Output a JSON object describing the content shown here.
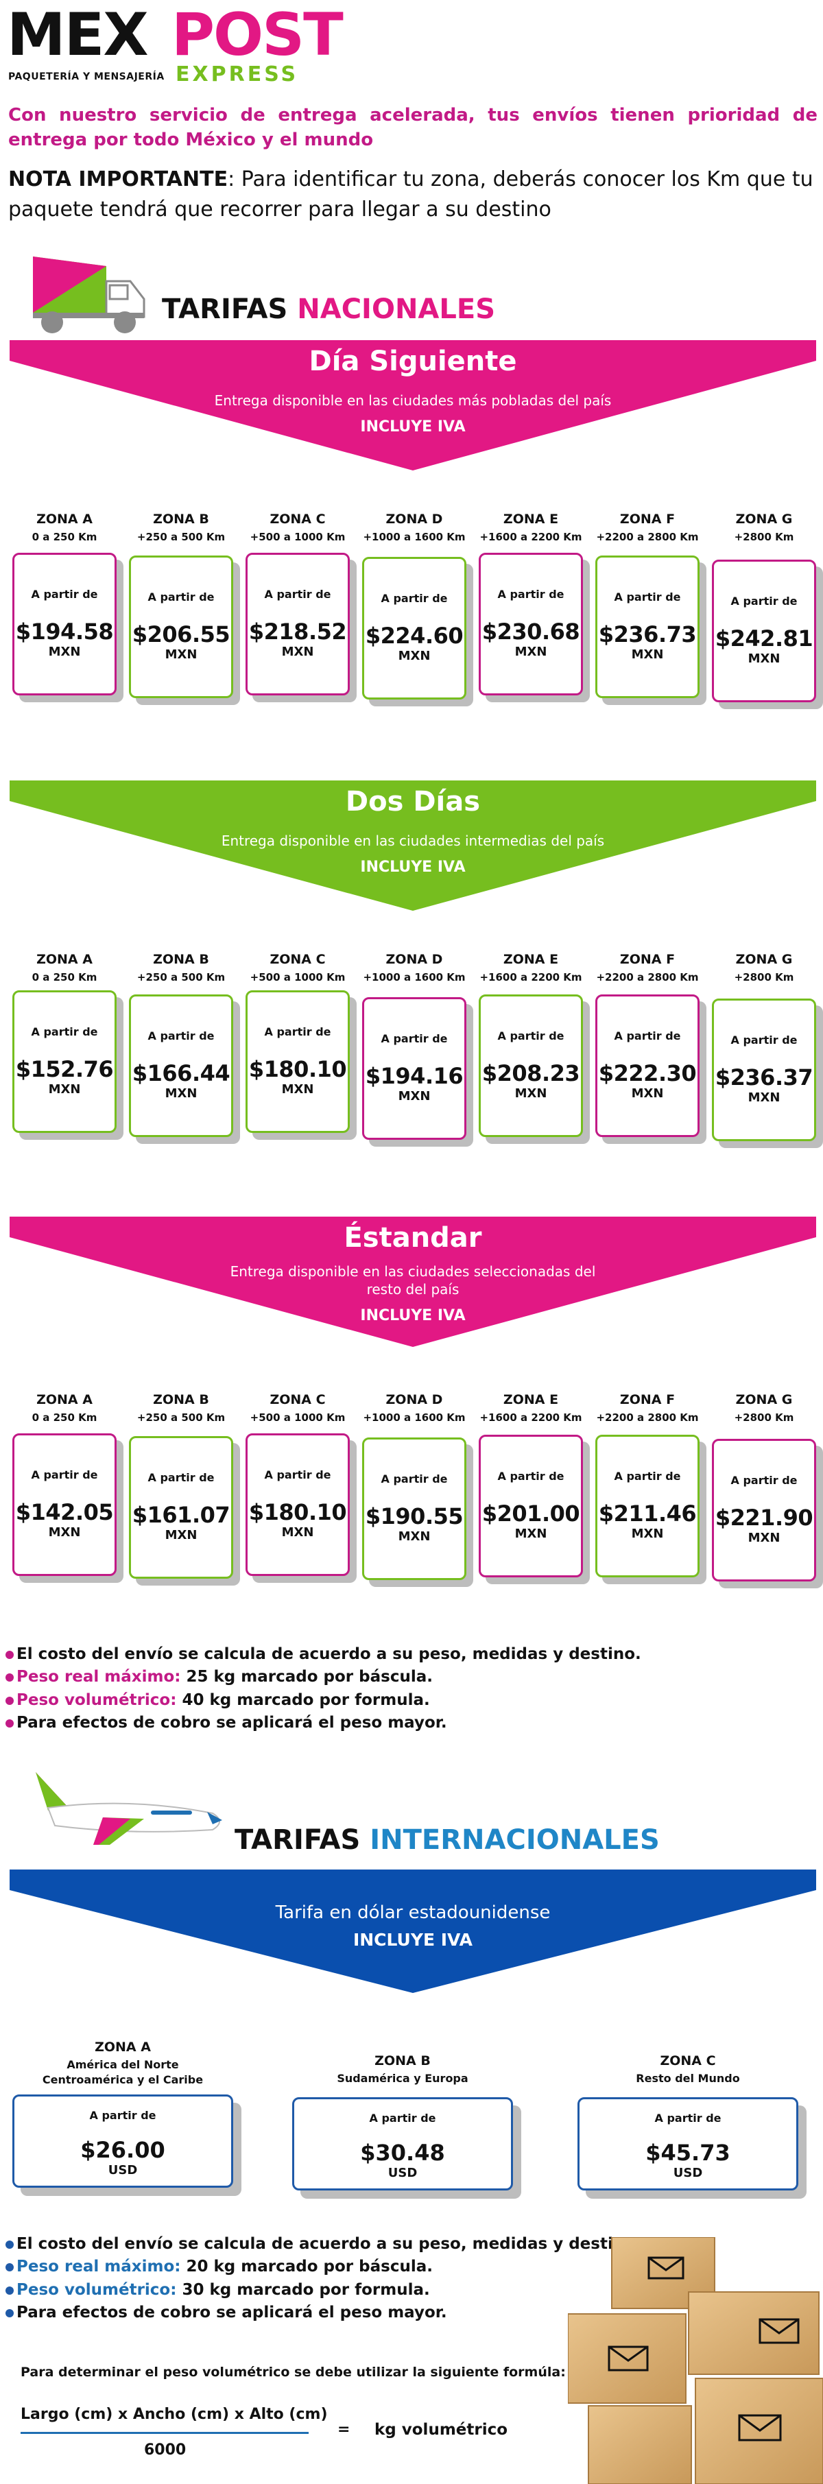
{
  "logo": {
    "mex": "MEX",
    "post": "POST",
    "subtitle": "PAQUETERÍA Y MENSAJERÍA",
    "express": "EXPRESS"
  },
  "intro": "Con nuestro servicio de entrega acelerada, tus envíos tienen prioridad de entrega por todo México y el mundo",
  "note": {
    "label": "NOTA IMPORTANTE",
    "text": ": Para identificar tu zona, deberás conocer los Km que tu paquete tendrá que recorrer para llegar a su destino"
  },
  "national": {
    "heading_a": "TARIFAS",
    "heading_b": "NACIONALES",
    "zones": [
      {
        "name": "ZONA A",
        "range": "0 a 250 Km"
      },
      {
        "name": "ZONA B",
        "range": "+250 a 500 Km"
      },
      {
        "name": "ZONA C",
        "range": "+500 a 1000 Km"
      },
      {
        "name": "ZONA D",
        "range": "+1000 a 1600 Km"
      },
      {
        "name": "ZONA E",
        "range": "+1600 a 2200 Km"
      },
      {
        "name": "ZONA F",
        "range": "+2200 a 2800 Km"
      },
      {
        "name": "ZONA G",
        "range": "+2800 Km"
      }
    ],
    "from_label": "A partir de",
    "currency": "MXN",
    "services": [
      {
        "title": "Día Siguiente",
        "desc": "Entrega disponible en las ciudades más pobladas del país",
        "iva": "INCLUYE IVA",
        "color": "#e21884",
        "prices": [
          "$194.58",
          "$206.55",
          "$218.52",
          "$224.60",
          "$230.68",
          "$236.73",
          "$242.81"
        ]
      },
      {
        "title": "Dos Días",
        "desc": "Entrega disponible en las ciudades intermedias del país",
        "iva": "INCLUYE IVA",
        "color": "#76be1f",
        "prices": [
          "$152.76",
          "$166.44",
          "$180.10",
          "$194.16",
          "$208.23",
          "$222.30",
          "$236.37"
        ]
      },
      {
        "title": "Éstandar",
        "desc": "Entrega disponible en las ciudades seleccionadas del resto del país",
        "desc_line1": "Entrega disponible en las ciudades seleccionadas del",
        "desc_line2": "resto del país",
        "iva": "INCLUYE IVA",
        "color": "#e21884",
        "prices": [
          "$142.05",
          "$161.07",
          "$180.10",
          "$190.55",
          "$201.00",
          "$211.46",
          "$221.90"
        ]
      }
    ],
    "bullets": [
      {
        "pre": "",
        "text": "El costo del envío se calcula de acuerdo a su peso, medidas y destino."
      },
      {
        "pre": "Peso real máximo:",
        "text": " 25 kg marcado por báscula."
      },
      {
        "pre": "Peso volumétrico:",
        "text": " 40 kg marcado por formula."
      },
      {
        "pre": "",
        "text": "Para efectos de cobro se aplicará el peso mayor."
      }
    ]
  },
  "international": {
    "heading_a": "TARIFAS",
    "heading_b": "INTERNACIONALES",
    "desc": "Tarifa en dólar estadounidense",
    "iva": "INCLUYE IVA",
    "color": "#0a4fae",
    "from_label": "A partir de",
    "currency": "USD",
    "zones": [
      {
        "name": "ZONA A",
        "line1": "América del Norte",
        "line2": "Centroamérica y el Caribe",
        "price": "$26.00"
      },
      {
        "name": "ZONA B",
        "line1": "Sudamérica y Europa",
        "line2": "",
        "price": "$30.48"
      },
      {
        "name": "ZONA C",
        "line1": "Resto del Mundo",
        "line2": "",
        "price": "$45.73"
      }
    ],
    "bullets": [
      {
        "pre": "",
        "text": "El costo del envío se calcula de acuerdo a su peso, medidas y destino."
      },
      {
        "pre": "Peso real máximo:",
        "text": " 20 kg marcado por báscula."
      },
      {
        "pre": "Peso volumétrico:",
        "text": " 30 kg marcado por formula."
      },
      {
        "pre": "",
        "text": "Para efectos de cobro se aplicará el peso mayor."
      }
    ],
    "formula_intro": "Para determinar el peso volumétrico se debe utilizar la siguiente formúla:",
    "formula_numerator": "Largo (cm) x Ancho (cm) x Alto (cm)",
    "formula_denominator": "6000",
    "formula_equals": "=",
    "formula_result": "kg volumétrico"
  }
}
